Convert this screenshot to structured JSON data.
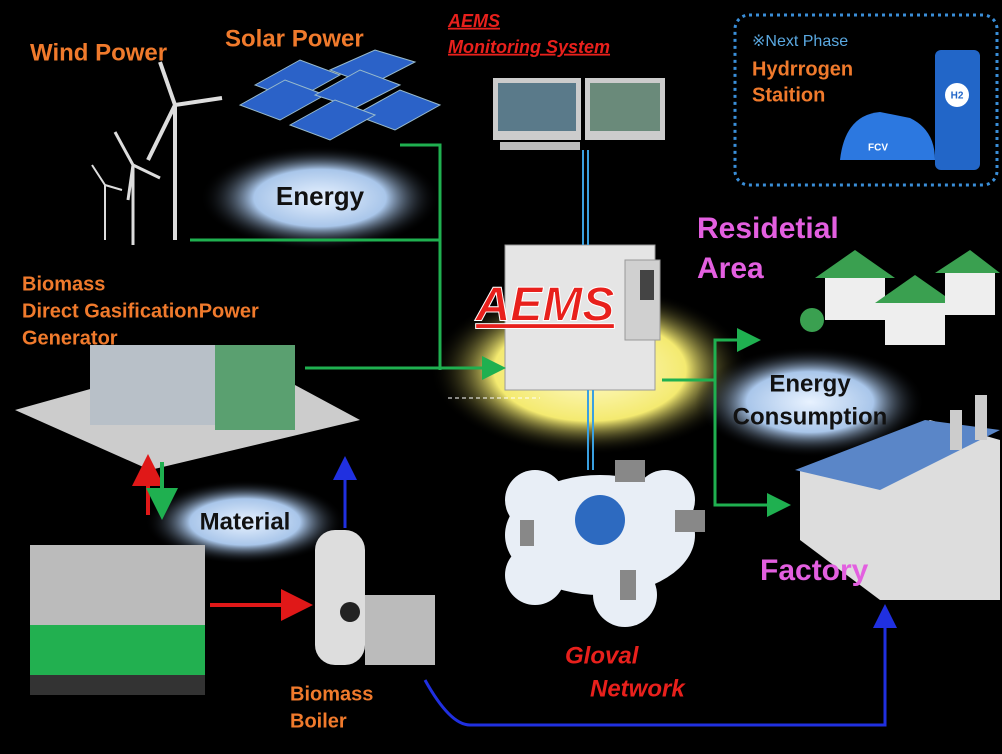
{
  "wind_power": "Wind Power",
  "solar_power": "Solar Power",
  "monitoring": [
    "AEMS",
    "Monitoring System"
  ],
  "next_phase": {
    "note": "※Next Phase",
    "title": [
      "Hydrrogen",
      "Staition"
    ],
    "car_label": "FCV",
    "station_label": "H2"
  },
  "energy": "Energy",
  "residential": [
    "Residetial",
    "Area"
  ],
  "biomass_generator": [
    "Biomass",
    "Direct GasificationPower",
    "Generator"
  ],
  "aems": "AEMS",
  "energy_consumption": [
    "Energy",
    "Consumption"
  ],
  "material": "Material",
  "factory": "Factory",
  "network": [
    "Gloval",
    "Network"
  ],
  "biomass_boiler": [
    "Biomass",
    "Boiler"
  ]
}
